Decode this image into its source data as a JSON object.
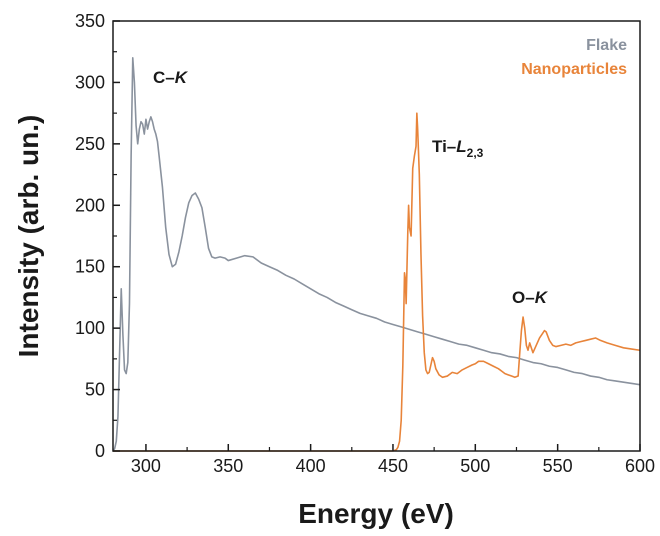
{
  "chart_data": {
    "type": "line",
    "xlabel": "Energy (eV)",
    "ylabel": "Intensity (arb. un.)",
    "xlim": [
      280,
      600
    ],
    "ylim": [
      0,
      350
    ],
    "x_ticks": [
      300,
      350,
      400,
      450,
      500,
      550,
      600
    ],
    "y_ticks": [
      0,
      50,
      100,
      150,
      200,
      250,
      300,
      350
    ],
    "grid": false,
    "legend_position": "top-right",
    "series": [
      {
        "name": "Flake",
        "color": "#8a929e",
        "points": [
          [
            280,
            0
          ],
          [
            281,
            2
          ],
          [
            282,
            8
          ],
          [
            283,
            28
          ],
          [
            284,
            80
          ],
          [
            285,
            132
          ],
          [
            286,
            95
          ],
          [
            287,
            66
          ],
          [
            288,
            63
          ],
          [
            289,
            72
          ],
          [
            290,
            120
          ],
          [
            291,
            240
          ],
          [
            292,
            320
          ],
          [
            293,
            300
          ],
          [
            294,
            265
          ],
          [
            295,
            250
          ],
          [
            296,
            262
          ],
          [
            297,
            268
          ],
          [
            298,
            266
          ],
          [
            299,
            258
          ],
          [
            300,
            270
          ],
          [
            301,
            262
          ],
          [
            302,
            268
          ],
          [
            303,
            272
          ],
          [
            304,
            268
          ],
          [
            305,
            262
          ],
          [
            306,
            258
          ],
          [
            307,
            252
          ],
          [
            308,
            240
          ],
          [
            310,
            215
          ],
          [
            312,
            182
          ],
          [
            314,
            160
          ],
          [
            316,
            150
          ],
          [
            318,
            152
          ],
          [
            320,
            162
          ],
          [
            322,
            175
          ],
          [
            324,
            190
          ],
          [
            326,
            202
          ],
          [
            328,
            208
          ],
          [
            330,
            210
          ],
          [
            332,
            205
          ],
          [
            334,
            198
          ],
          [
            336,
            182
          ],
          [
            338,
            165
          ],
          [
            340,
            158
          ],
          [
            342,
            157
          ],
          [
            345,
            158
          ],
          [
            348,
            157
          ],
          [
            350,
            155
          ],
          [
            355,
            157
          ],
          [
            360,
            159
          ],
          [
            365,
            158
          ],
          [
            370,
            153
          ],
          [
            375,
            150
          ],
          [
            380,
            147
          ],
          [
            385,
            143
          ],
          [
            390,
            140
          ],
          [
            395,
            136
          ],
          [
            400,
            132
          ],
          [
            405,
            128
          ],
          [
            410,
            125
          ],
          [
            415,
            121
          ],
          [
            420,
            118
          ],
          [
            425,
            115
          ],
          [
            430,
            112
          ],
          [
            435,
            110
          ],
          [
            440,
            108
          ],
          [
            445,
            105
          ],
          [
            450,
            103
          ],
          [
            455,
            101
          ],
          [
            460,
            99
          ],
          [
            465,
            97
          ],
          [
            470,
            95
          ],
          [
            475,
            93
          ],
          [
            480,
            91
          ],
          [
            485,
            89
          ],
          [
            490,
            87
          ],
          [
            495,
            86
          ],
          [
            500,
            84
          ],
          [
            505,
            82
          ],
          [
            510,
            80
          ],
          [
            515,
            79
          ],
          [
            520,
            77
          ],
          [
            525,
            76
          ],
          [
            530,
            74
          ],
          [
            535,
            72
          ],
          [
            540,
            71
          ],
          [
            545,
            69
          ],
          [
            550,
            68
          ],
          [
            555,
            66
          ],
          [
            560,
            64
          ],
          [
            565,
            63
          ],
          [
            570,
            61
          ],
          [
            575,
            60
          ],
          [
            580,
            58
          ],
          [
            585,
            57
          ],
          [
            590,
            56
          ],
          [
            595,
            55
          ],
          [
            600,
            54
          ]
        ]
      },
      {
        "name": "Nanoparticles",
        "color": "#e8843a",
        "points": [
          [
            280,
            0
          ],
          [
            300,
            0
          ],
          [
            350,
            0
          ],
          [
            400,
            0
          ],
          [
            450,
            0
          ],
          [
            452,
            1
          ],
          [
            453,
            3
          ],
          [
            454,
            8
          ],
          [
            455,
            25
          ],
          [
            456,
            70
          ],
          [
            457,
            145
          ],
          [
            457.5,
            140
          ],
          [
            458,
            120
          ],
          [
            459,
            178
          ],
          [
            459.5,
            200
          ],
          [
            460,
            182
          ],
          [
            461,
            175
          ],
          [
            462,
            230
          ],
          [
            463,
            240
          ],
          [
            464,
            248
          ],
          [
            464.5,
            275
          ],
          [
            465,
            262
          ],
          [
            466,
            225
          ],
          [
            467,
            160
          ],
          [
            468,
            110
          ],
          [
            469,
            80
          ],
          [
            470,
            66
          ],
          [
            471,
            63
          ],
          [
            472,
            64
          ],
          [
            473,
            70
          ],
          [
            474,
            76
          ],
          [
            475,
            73
          ],
          [
            476,
            67
          ],
          [
            478,
            62
          ],
          [
            480,
            60
          ],
          [
            483,
            61
          ],
          [
            486,
            64
          ],
          [
            489,
            63
          ],
          [
            492,
            66
          ],
          [
            495,
            68
          ],
          [
            498,
            70
          ],
          [
            500,
            71
          ],
          [
            502,
            73
          ],
          [
            505,
            73
          ],
          [
            508,
            71
          ],
          [
            511,
            69
          ],
          [
            514,
            67
          ],
          [
            516,
            65
          ],
          [
            518,
            63
          ],
          [
            520,
            62
          ],
          [
            522,
            61
          ],
          [
            524,
            60
          ],
          [
            526,
            61
          ],
          [
            527,
            80
          ],
          [
            528,
            98
          ],
          [
            529,
            109
          ],
          [
            530,
            100
          ],
          [
            531,
            86
          ],
          [
            532,
            82
          ],
          [
            533,
            88
          ],
          [
            534,
            84
          ],
          [
            535,
            80
          ],
          [
            537,
            86
          ],
          [
            539,
            92
          ],
          [
            541,
            96
          ],
          [
            542,
            98
          ],
          [
            543,
            97
          ],
          [
            545,
            90
          ],
          [
            547,
            86
          ],
          [
            549,
            85
          ],
          [
            552,
            86
          ],
          [
            555,
            87
          ],
          [
            558,
            86
          ],
          [
            561,
            88
          ],
          [
            564,
            89
          ],
          [
            567,
            90
          ],
          [
            570,
            91
          ],
          [
            573,
            92
          ],
          [
            576,
            90
          ],
          [
            580,
            88
          ],
          [
            585,
            86
          ],
          [
            590,
            84
          ],
          [
            595,
            83
          ],
          [
            600,
            82
          ]
        ]
      }
    ],
    "annotations": [
      {
        "text": "C–K",
        "x": 310,
        "y": 303
      },
      {
        "text": "Ti–L2,3",
        "x": 484,
        "y": 250
      },
      {
        "text": "O–K",
        "x": 529,
        "y": 122
      }
    ]
  },
  "annotation_parts": {
    "ck_prefix": "C–",
    "ck_italic": "K",
    "ti_prefix": "Ti–",
    "ti_italic": "L",
    "ti_sub": "2,3",
    "ok_prefix": "O–",
    "ok_italic": "K"
  }
}
